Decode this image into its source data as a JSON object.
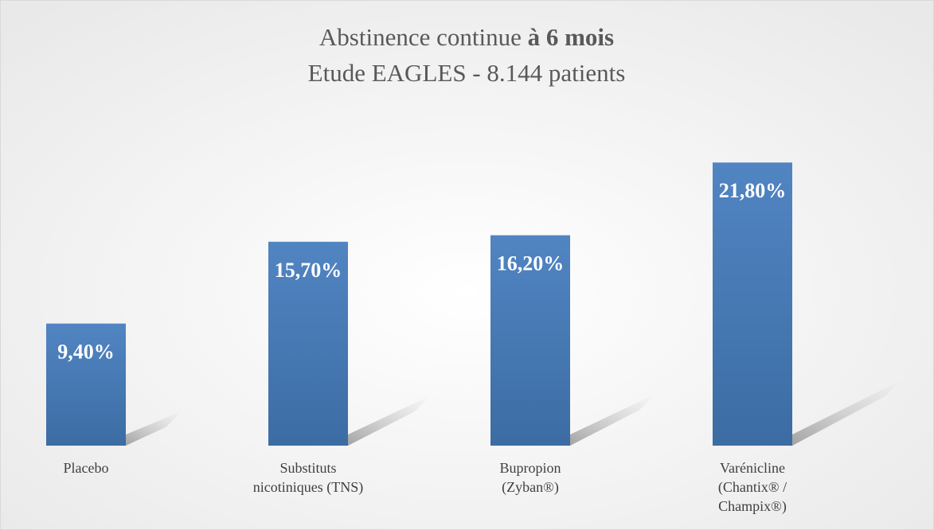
{
  "chart_data": {
    "type": "bar",
    "title": "Abstinence continue",
    "title_emphasis": "à 6 mois",
    "subtitle": "Etude EAGLES - 8.144 patients",
    "categories": [
      "Placebo",
      "Substituts nicotiniques (TNS)",
      "Bupropion (Zyban®)",
      "Varénicline (Chantix® / Champix®)"
    ],
    "values": [
      9.4,
      15.7,
      16.2,
      21.8
    ],
    "value_labels": [
      "9,40%",
      "15,70%",
      "16,20%",
      "21,80%"
    ],
    "color": "#4f81bd",
    "ylim": [
      0,
      25
    ]
  }
}
